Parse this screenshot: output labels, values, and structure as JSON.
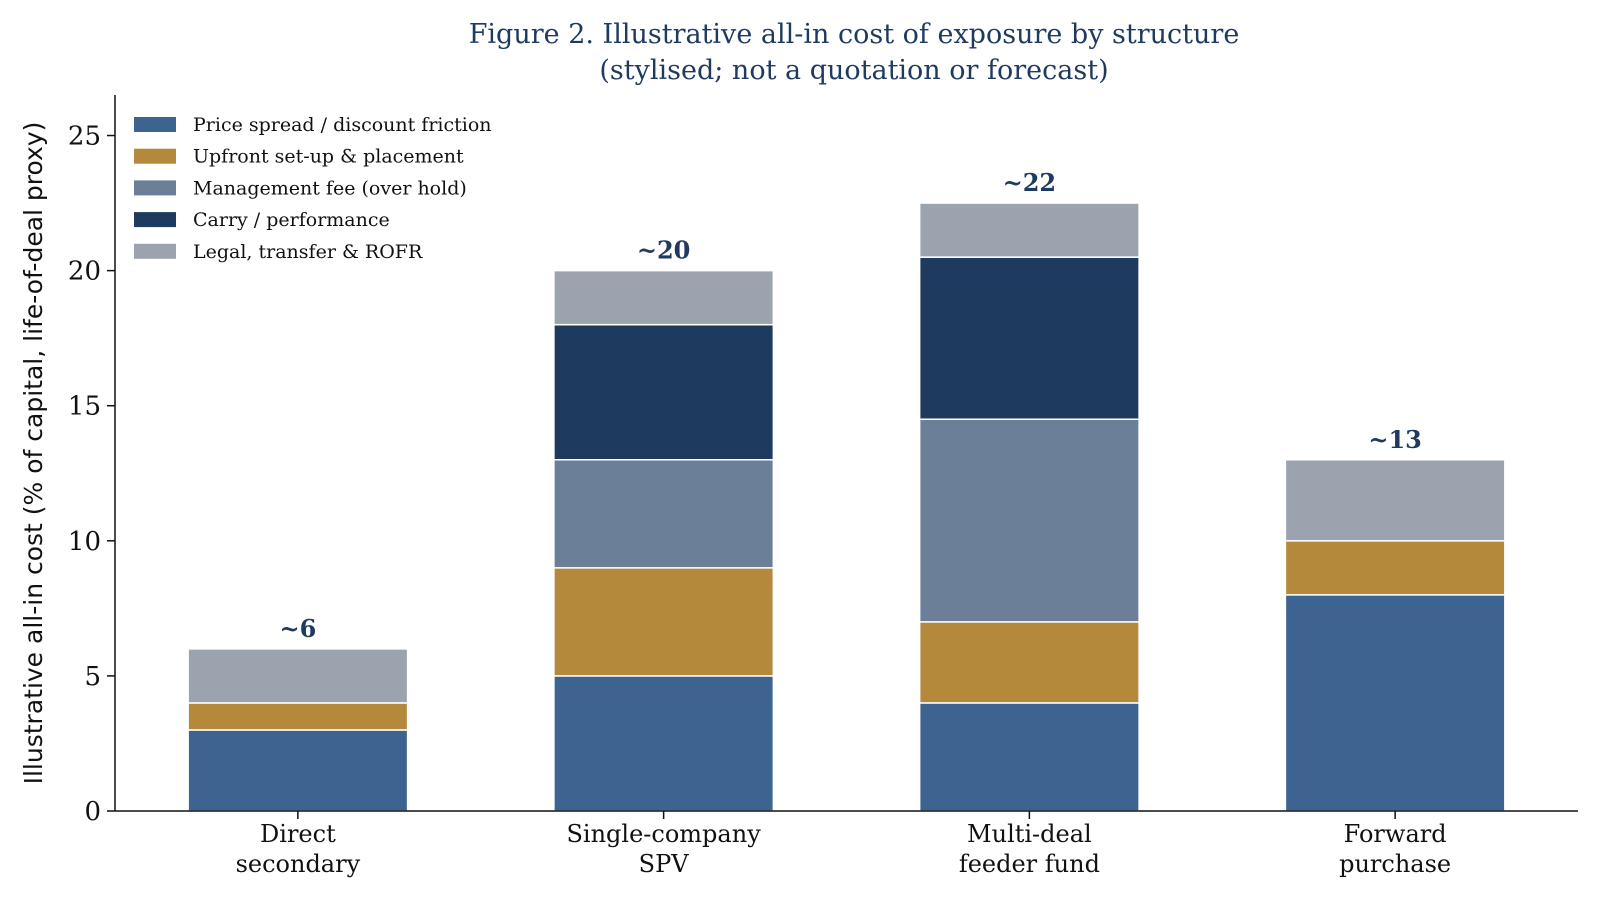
{
  "chart_data": {
    "type": "bar",
    "stacked": true,
    "title": "Figure 2.  Illustrative all-in cost of exposure by structure",
    "subtitle": "(stylised; not a quotation or forecast)",
    "xlabel": "",
    "ylabel": "Illustrative all-in cost (% of capital, life-of-deal proxy)",
    "ylim": [
      0,
      26.5
    ],
    "yticks": [
      0,
      5,
      10,
      15,
      20,
      25
    ],
    "grid": false,
    "legend_position": "top-left",
    "categories": [
      [
        "Direct",
        "secondary"
      ],
      [
        "Single-company",
        "SPV"
      ],
      [
        "Multi-deal",
        "feeder fund"
      ],
      [
        "Forward",
        "purchase"
      ]
    ],
    "series": [
      {
        "name": "Price spread / discount friction",
        "color": "#3d6490",
        "values": [
          3,
          5,
          4,
          8
        ]
      },
      {
        "name": "Upfront set-up & placement",
        "color": "#b5893c",
        "values": [
          1,
          4,
          3,
          2
        ]
      },
      {
        "name": "Management fee (over hold)",
        "color": "#6c7f98",
        "values": [
          0,
          4,
          7.5,
          0
        ]
      },
      {
        "name": "Carry / performance",
        "color": "#1f3a5f",
        "values": [
          0,
          5,
          6,
          0
        ]
      },
      {
        "name": "Legal, transfer & ROFR",
        "color": "#9ba3ae",
        "values": [
          2,
          2,
          2,
          3
        ]
      }
    ],
    "total_labels": [
      "~6",
      "~20",
      "~22",
      "~13"
    ]
  }
}
